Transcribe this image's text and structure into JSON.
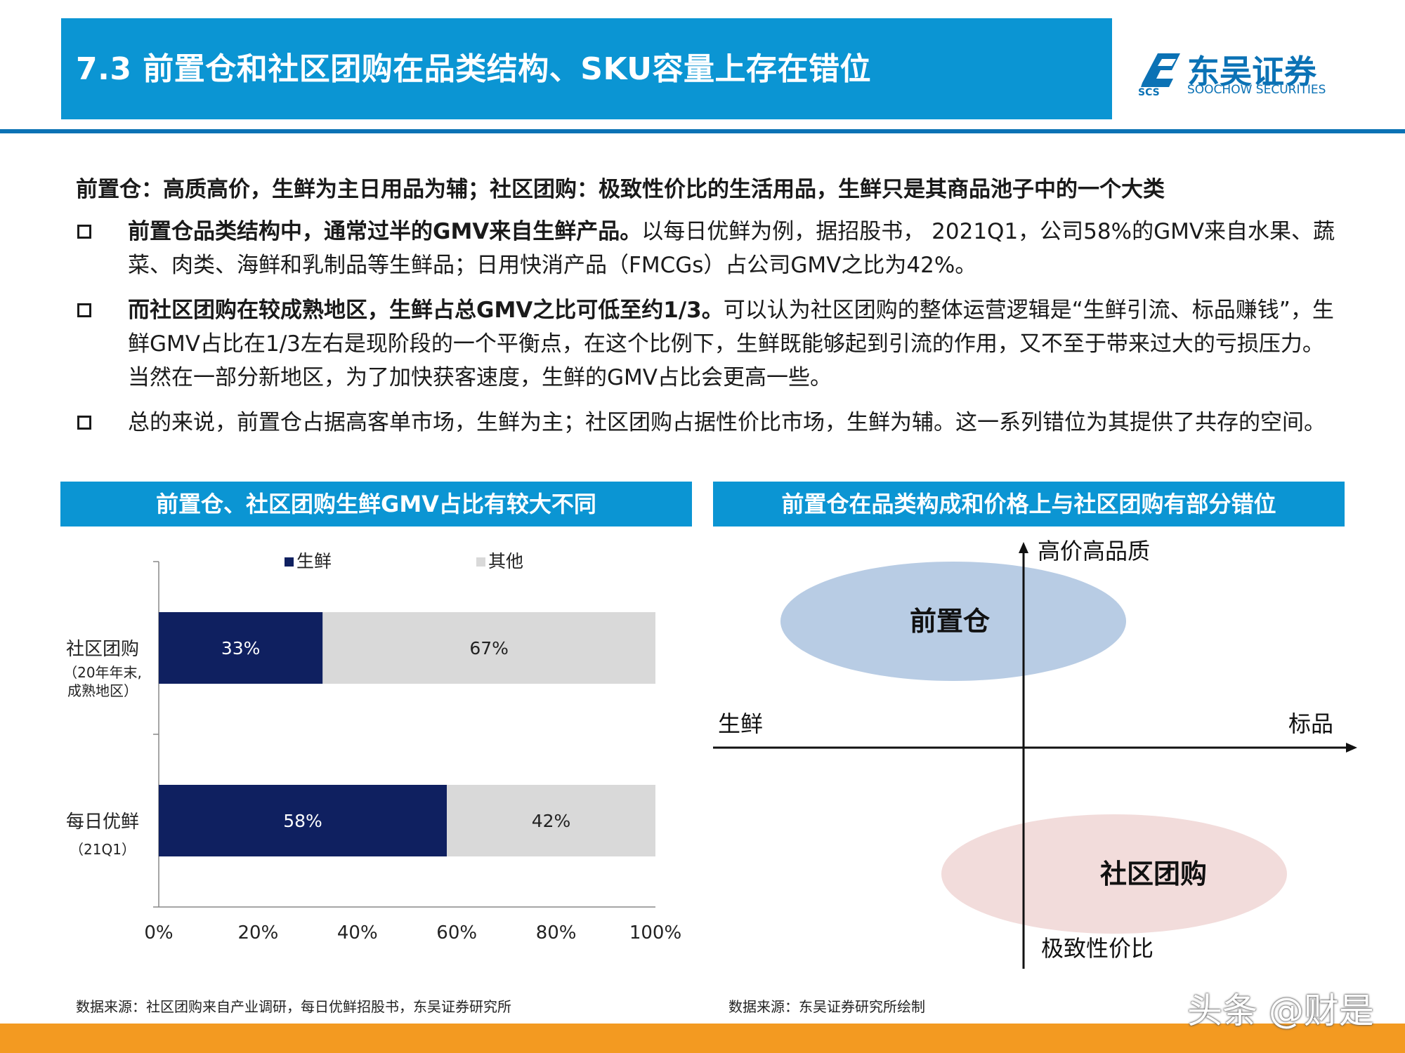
{
  "header": {
    "title": "7.3 前置仓和社区团购在品类结构、SKU容量上存在错位",
    "logo_cn": "东吴证券",
    "logo_en": "SOOCHOW SECURITIES",
    "logo_abbr": "SCS"
  },
  "intro": "前置仓：高质高价，生鲜为主日用品为辅；社区团购：极致性价比的生活用品，生鲜只是其商品池子中的一个大类",
  "bullets": [
    {
      "bold": "前置仓品类结构中，通常过半的GMV来自生鲜产品。",
      "text": "以每日优鲜为例，据招股书， 2021Q1，公司58%的GMV来自水果、蔬菜、肉类、海鲜和乳制品等生鲜品；日用快消产品（FMCGs）占公司GMV之比为42%。"
    },
    {
      "bold": "而社区团购在较成熟地区，生鲜占总GMV之比可低至约1/3。",
      "text": "可以认为社区团购的整体运营逻辑是“生鲜引流、标品赚钱”，生鲜GMV占比在1/3左右是现阶段的一个平衡点，在这个比例下，生鲜既能够起到引流的作用，又不至于带来过大的亏损压力。当然在一部分新地区，为了加快获客速度，生鲜的GMV占比会更高一些。"
    },
    {
      "bold": "",
      "text": "总的来说，前置仓占据高客单市场，生鲜为主；社区团购占据性价比市场，生鲜为辅。这一系列错位为其提供了共存的空间。"
    }
  ],
  "left_panel": {
    "heading": "前置仓、社区团购生鲜GMV占比有较大不同",
    "footnote": "数据来源：社区团购来自产业调研，每日优鲜招股书，东吴证券研究所"
  },
  "right_panel": {
    "heading": "前置仓在品类构成和价格上与社区团购有部分错位",
    "footnote": "数据来源：东吴证券研究所绘制",
    "axis_top": "高价高品质",
    "axis_bottom": "极致性价比",
    "axis_left": "生鲜",
    "axis_right": "标品",
    "bubble_top": "前置仓",
    "bubble_bottom": "社区团购"
  },
  "chart_data": {
    "type": "bar",
    "orientation": "horizontal-stacked-100",
    "categories": [
      {
        "line1": "社区团购",
        "line2": "（20年年末,",
        "line3": "成熟地区）"
      },
      {
        "line1": "每日优鲜",
        "line2": "（21Q1）",
        "line3": ""
      }
    ],
    "series": [
      {
        "name": "生鲜",
        "color": "#0f2060",
        "values": [
          33,
          58
        ],
        "labels": [
          "33%",
          "58%"
        ]
      },
      {
        "name": "其他",
        "color": "#d9d9d9",
        "values": [
          67,
          42
        ],
        "labels": [
          "67%",
          "42%"
        ]
      }
    ],
    "xlim": [
      0,
      100
    ],
    "xticks": [
      "0%",
      "20%",
      "40%",
      "60%",
      "80%",
      "100%"
    ],
    "legend_position": "top"
  },
  "colors": {
    "header_blue": "#0b95d3",
    "rule_blue": "#0b72b5",
    "bottom_orange": "#f39a21",
    "bubble_top": "#b8cce4",
    "bubble_bottom": "#f2dcdb"
  },
  "watermark": "头条 @财是"
}
